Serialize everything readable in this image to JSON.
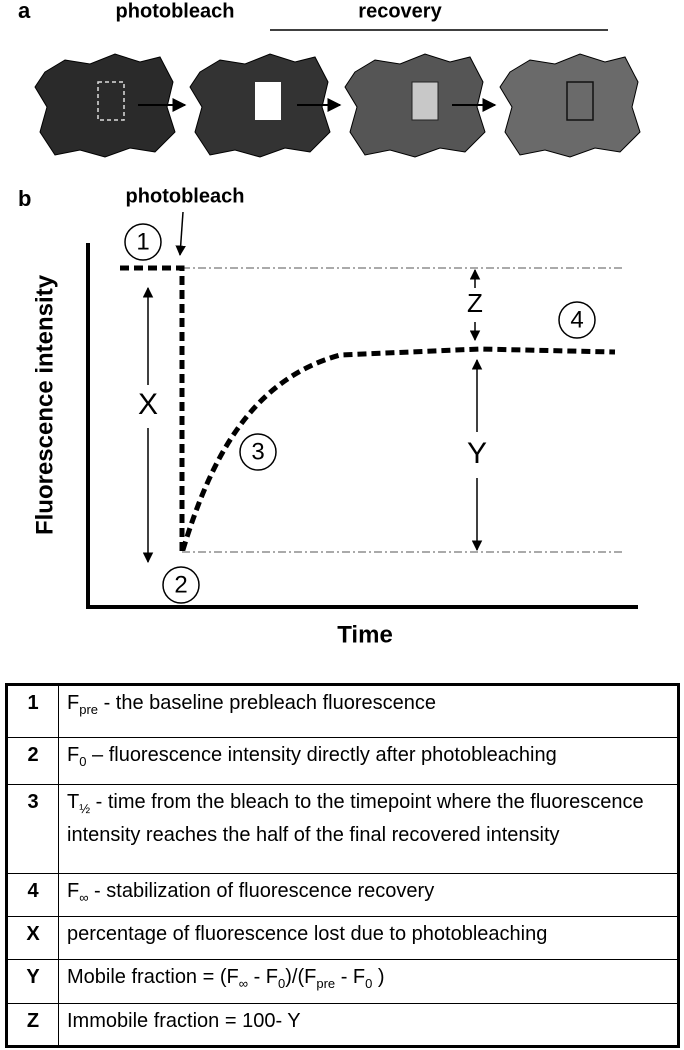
{
  "panel_a": {
    "label": "a",
    "photobleach_label": "photobleach",
    "recovery_label": "recovery"
  },
  "panel_b": {
    "label": "b",
    "photobleach_label": "photobleach",
    "y_axis_label": "Fluorescence intensity",
    "x_axis_label": "Time",
    "markers": [
      "1",
      "2",
      "3",
      "4"
    ],
    "x_label": "X",
    "y_label": "Y",
    "z_label": "Z"
  },
  "table": {
    "rows": [
      {
        "key": "1",
        "description": [
          {
            "text": "F"
          },
          {
            "sub": "pre"
          },
          {
            "text": " - the baseline prebleach  fluorescence"
          }
        ]
      },
      {
        "key": "2",
        "description": [
          {
            "text": "F"
          },
          {
            "sub": "0"
          },
          {
            "text": " – fluorescence intensity directly after photobleaching"
          }
        ]
      },
      {
        "key": "3",
        "description": [
          {
            "text": "T"
          },
          {
            "sub": "½"
          },
          {
            "text": " - time from the bleach to the timepoint where the fluorescence intensity reaches the half of the final recovered intensity"
          }
        ]
      },
      {
        "key": "4",
        "description": [
          {
            "text": "F"
          },
          {
            "sub": "∞"
          },
          {
            "text": " - stabilization of fluorescence recovery"
          }
        ]
      },
      {
        "key": "X",
        "description": [
          {
            "text": "percentage of fluorescence lost due to photobleaching"
          }
        ]
      },
      {
        "key": "Y",
        "description": [
          {
            "text": "Mobile fraction = (F"
          },
          {
            "sub": "∞"
          },
          {
            "text": " - F"
          },
          {
            "sub": "0"
          },
          {
            "text": ")/(F"
          },
          {
            "sub": "pre"
          },
          {
            "text": " - F"
          },
          {
            "sub": "0"
          },
          {
            "text": " )"
          }
        ]
      },
      {
        "key": "Z",
        "description": [
          {
            "text": "Immobile fraction = 100- Y"
          }
        ]
      }
    ]
  }
}
